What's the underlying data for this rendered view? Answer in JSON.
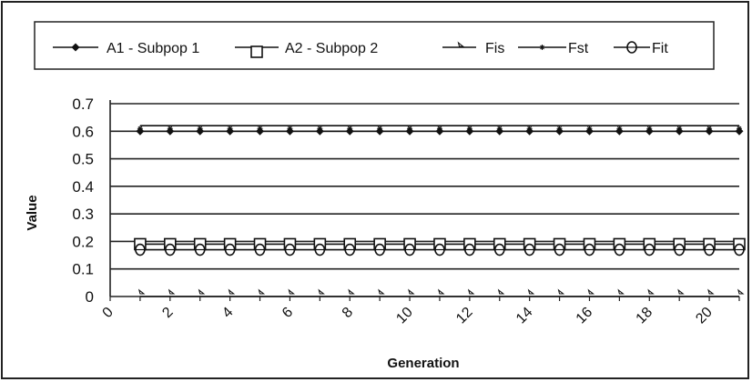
{
  "chart_data": {
    "type": "line",
    "title": "",
    "xlabel": "Generation",
    "ylabel": "Value",
    "ylim": [
      0,
      0.7
    ],
    "yticks": [
      "0",
      "0.1",
      "0.2",
      "0.3",
      "0.4",
      "0.5",
      "0.6",
      "0.7"
    ],
    "xlim": [
      0,
      21
    ],
    "xticks": [
      "0",
      "2",
      "4",
      "6",
      "8",
      "10",
      "12",
      "14",
      "16",
      "18",
      "20"
    ],
    "grid": "horizontal",
    "legend_position": "top",
    "x": [
      1,
      2,
      3,
      4,
      5,
      6,
      7,
      8,
      9,
      10,
      11,
      12,
      13,
      14,
      15,
      16,
      17,
      18,
      19,
      20,
      21
    ],
    "series": [
      {
        "name": "A1 - Subpop 1",
        "marker": "diamond",
        "color": "#111111",
        "values": [
          0.6,
          0.6,
          0.6,
          0.6,
          0.6,
          0.6,
          0.6,
          0.6,
          0.6,
          0.6,
          0.6,
          0.6,
          0.6,
          0.6,
          0.6,
          0.6,
          0.6,
          0.6,
          0.6,
          0.6,
          0.6
        ]
      },
      {
        "name": "A2 - Subpop 2",
        "marker": "square",
        "color": "#111111",
        "values": [
          0.19,
          0.19,
          0.19,
          0.19,
          0.19,
          0.19,
          0.19,
          0.19,
          0.19,
          0.19,
          0.19,
          0.19,
          0.19,
          0.19,
          0.19,
          0.19,
          0.19,
          0.19,
          0.19,
          0.19,
          0.19
        ]
      },
      {
        "name": "Fis",
        "marker": "triangle",
        "color": "#111111",
        "values": [
          0.0,
          0.0,
          0.0,
          0.0,
          0.0,
          0.0,
          0.0,
          0.0,
          0.0,
          0.0,
          0.0,
          0.0,
          0.0,
          0.0,
          0.0,
          0.0,
          0.0,
          0.0,
          0.0,
          0.0,
          0.0
        ]
      },
      {
        "name": "Fst",
        "marker": "star",
        "color": "#111111",
        "values": [
          0.62,
          0.62,
          0.62,
          0.62,
          0.62,
          0.62,
          0.62,
          0.62,
          0.62,
          0.62,
          0.62,
          0.62,
          0.62,
          0.62,
          0.62,
          0.62,
          0.62,
          0.62,
          0.62,
          0.62,
          0.62
        ]
      },
      {
        "name": "Fit",
        "marker": "circle",
        "color": "#111111",
        "values": [
          0.17,
          0.17,
          0.17,
          0.17,
          0.17,
          0.17,
          0.17,
          0.17,
          0.17,
          0.17,
          0.17,
          0.17,
          0.17,
          0.17,
          0.17,
          0.17,
          0.17,
          0.17,
          0.17,
          0.17,
          0.17
        ]
      }
    ]
  }
}
